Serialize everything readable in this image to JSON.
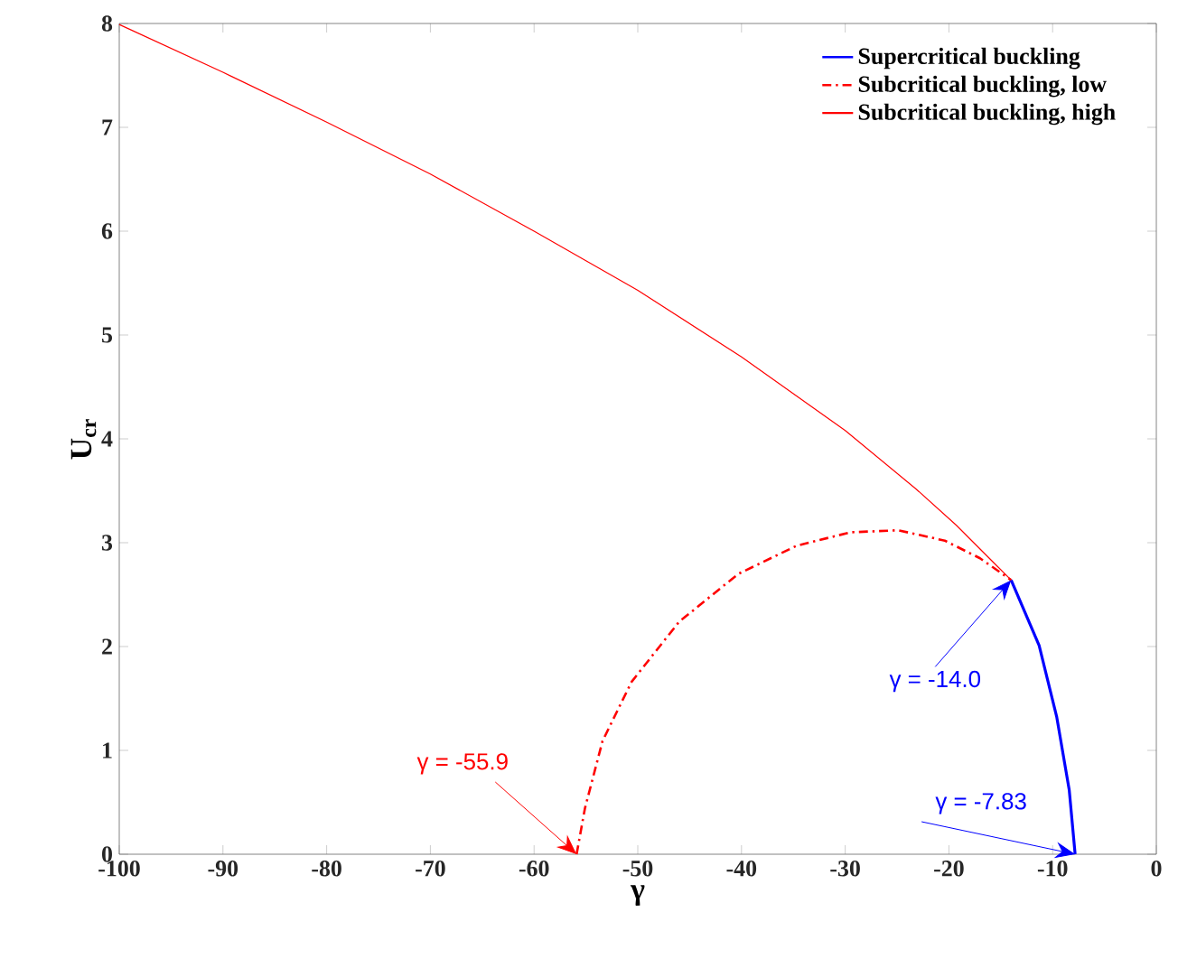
{
  "chart_data": {
    "type": "line",
    "xlabel": "γ",
    "ylabel": "U$_{cr}$",
    "xlim": [
      -100,
      0
    ],
    "ylim": [
      0,
      8
    ],
    "xticks": [
      -100,
      -90,
      -80,
      -70,
      -60,
      -50,
      -40,
      -30,
      -20,
      -10,
      0
    ],
    "yticks": [
      0,
      1,
      2,
      3,
      4,
      5,
      6,
      7,
      8
    ],
    "grid": false,
    "legend": "top right",
    "marker": "none",
    "series": [
      {
        "name": "Supercritical buckling",
        "color": "#0000ff",
        "line_style": "solid",
        "x": [
          -14.0,
          -11.3,
          -9.6,
          -8.4,
          -7.83
        ],
        "values": [
          2.64,
          2.01,
          1.32,
          0.62,
          0
        ]
      },
      {
        "name": "Subcritical buckling, low",
        "color": "#ff0000",
        "line_style": "dashdot",
        "x": [
          -55.9,
          -55.1,
          -53.4,
          -50.6,
          -46.0,
          -40.3,
          -34.7,
          -29.5,
          -24.9,
          -20.4,
          -17.0,
          -14.0
        ],
        "values": [
          0,
          0.44,
          1.09,
          1.66,
          2.24,
          2.7,
          2.97,
          3.1,
          3.12,
          3.02,
          2.85,
          2.64
        ]
      },
      {
        "name": "Subcritical buckling, high",
        "color": "#ff0000",
        "line_style": "solid",
        "x": [
          -100,
          -90,
          -80,
          -70,
          -60,
          -50,
          -40,
          -30,
          -23.2,
          -19.3,
          -15.8,
          -14.0
        ],
        "values": [
          7.99,
          7.53,
          7.05,
          6.55,
          6.0,
          5.43,
          4.79,
          4.08,
          3.52,
          3.17,
          2.82,
          2.64
        ]
      }
    ],
    "annotations": [
      {
        "text": "γ = -55.9",
        "x": -55.9,
        "y": 0
      },
      {
        "text": "γ = -14.0",
        "x": -14.0,
        "y": 2.64
      },
      {
        "text": "γ = -7.83",
        "x": -7.83,
        "y": 0
      }
    ]
  }
}
